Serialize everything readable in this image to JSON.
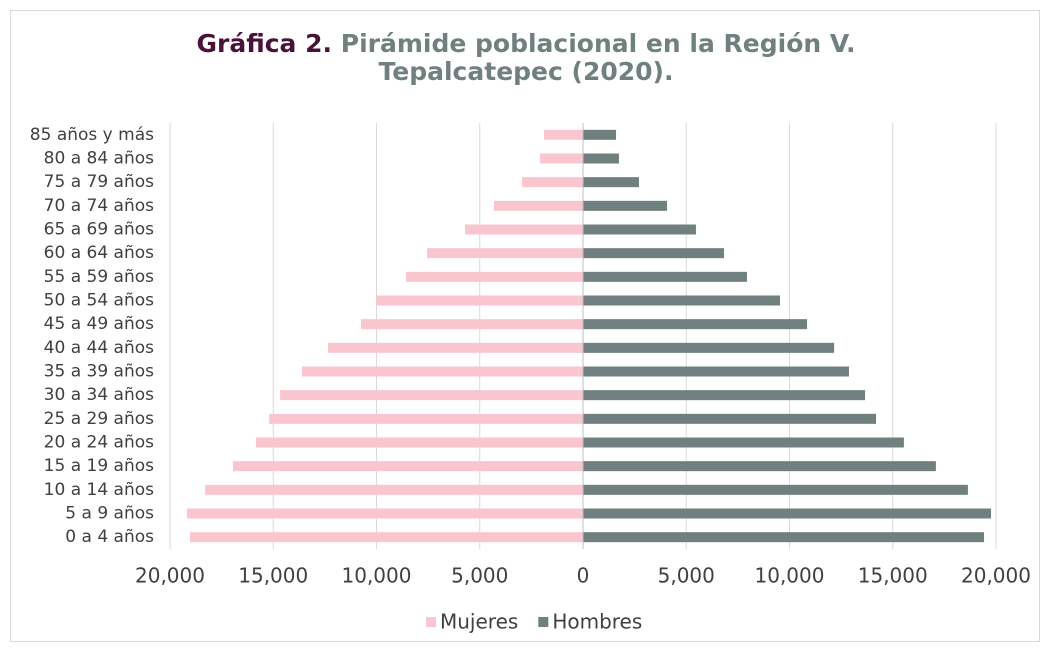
{
  "chart_data": {
    "type": "pyramid",
    "title_label": "Gráfica 2.",
    "title": "Pirámide poblacional en la Región V. Tepalcatepec (2020).",
    "categories": [
      "85 años y más",
      "80 a 84 años",
      "75 a 79 años",
      "70 a 74 años",
      "65 a 69 años",
      "60 a 64 años",
      "55 a 59 años",
      "50 a 54 años",
      "45 a 49 años",
      "40 a 44 años",
      "35 a 39 años",
      "30 a 34 años",
      "25 a 29 años",
      "20 a 24 años",
      "15 a 19 años",
      "10 a 14 años",
      "5 a 9 años",
      "0 a 4 años"
    ],
    "series": [
      {
        "name": "Mujeres",
        "color": "#f9c6d0",
        "values": [
          -1890,
          -2080,
          -2950,
          -4310,
          -5710,
          -7550,
          -8570,
          -10020,
          -10750,
          -12350,
          -13610,
          -14670,
          -15200,
          -15840,
          -16950,
          -18300,
          -19180,
          -19030
        ]
      },
      {
        "name": "Hombres",
        "color": "#6f807e",
        "values": [
          1600,
          1740,
          2710,
          4070,
          5470,
          6830,
          7940,
          9540,
          10850,
          12160,
          12880,
          13660,
          14190,
          15540,
          17090,
          18640,
          19760,
          19420
        ]
      }
    ],
    "xlim": [
      -20000,
      20000
    ],
    "xticks": [
      {
        "value": -20000,
        "label": "20,000"
      },
      {
        "value": -15000,
        "label": "15,000"
      },
      {
        "value": -10000,
        "label": "10,000"
      },
      {
        "value": -5000,
        "label": "5,000"
      },
      0,
      {
        "value": 5000,
        "label": "5,000"
      },
      {
        "value": 10000,
        "label": "10,000"
      },
      {
        "value": 15000,
        "label": "15,000"
      },
      {
        "value": 20000,
        "label": "20,000"
      }
    ],
    "grid": true,
    "legend": "bottom"
  }
}
